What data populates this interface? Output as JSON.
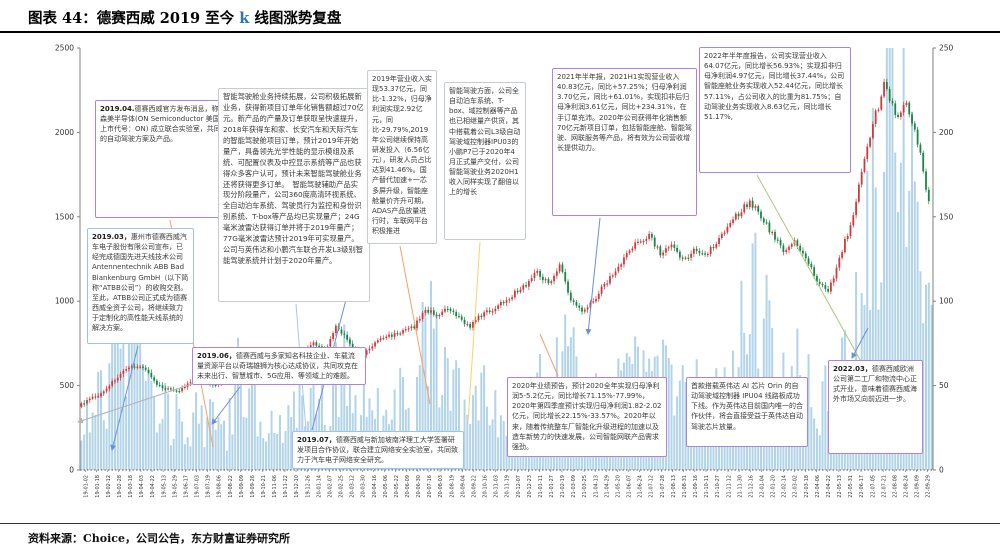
{
  "title": {
    "pre": "图表 44：德赛西威 2019 至今 ",
    "k": "k",
    "post": " 线图涨势复盘"
  },
  "footer": {
    "source": "资料来源：Choice，公司公告，东方财富证券研究所"
  },
  "annotations": [
    {
      "lead": "2019.04.",
      "body": "德赛西威官方发布消息，称将联合安森美半导体(ON Semiconductor 美国纳斯达克上市代号：ON) 成立联合实验室，共同研发先进的自动驾驶方案及产品。"
    },
    {
      "lead": "2019.03，",
      "body": "惠州市德赛西威汽车电子股份有限公司宣布，已经完成德国先进天线技术公司Antennentechnik ABB Bad Blankenburg GmbH（以下简称“ATBB公司”）的收购交割。至此，ATBB公司正式成为德赛西威全资子公司，将继续致力于定制化的高性能天线系统的解决方案。"
    },
    {
      "lead": "",
      "body": "智能驾驶舱业务持续拓展，公司积极拓展新业务，获得新项目订单年化销售额超过70亿元。新产品的产量及订单获取呈快速提升，2018年获得车和家、长安汽车和天际汽车的智能驾驶舱项目订单，预计2019年开始量产，具备领先光学性能的显示模组及系统、可配置仪表及中控显示系统等产品也获得众多客户认可，预计未来智能驾驶舱业务还将获得更多订单。　智能驾驶辅助产品实现分阶段量产，公司360度高清环视系统、全自动泊车系统、驾驶员行为监控和身份识别系统、T-box等产品均已实现量产；24G毫米波雷达获得订单并将于2019年量产；77G毫米波雷达预计2019年可实现量产。公司与英伟达和小鹏汽车联合开发L3级别智能驾驶系统并计划于2020年量产。"
    },
    {
      "lead": "2019.06，",
      "body": "德赛西威与多家知名科技企业、车载流量资源平台以奇瑞雄狮为核心达成协议，共同攻克在未来出行、智慧城市、5G应用、等领域上的难题。"
    },
    {
      "lead": "2019.07，",
      "body": "德赛西威与新加坡南洋理工大学签署研发项目合作协议，联合建立网络安全实验室，共同致力于汽车电子网络安全研究。"
    },
    {
      "lead": "",
      "body": "2019年营业收入实现53.37亿元，同比-1.32%，归母净利润实现2.92亿元，同比-29.79%,2019年公司继续保持高研发投入（6.56亿元），研发人员占比达到41.46%。国产替代加速+一芯多屏升级，智能座舱量价齐升可期，ADAS产品放量进行时，车联网平台积极推进"
    },
    {
      "lead": "",
      "body": "智能驾驶方面，公司全自动泊车系统、T-box、域控制器等产品也已相继量产供货，其中搭载着公司L3级自动驾驶域控制器IPU03的小鹏P7已于2020年4月正式量产交付，公司智能驾驶业务2020H1收入同样实现了翻倍以上的增长"
    },
    {
      "lead": "",
      "body": "2021年半年报，2021H1实现营业收入40.83亿元，同比+57.25%；归母净利润3.70亿元，同比+61.01%，实现扣非后归母净利润3.61亿元，同比+234.31%，在手订单充沛。2020年公司获得年化销售额70亿元新项目订单，包括智能座舱、智能驾驶、网联服务等产品，将有效为公司营收增长提供动力。"
    },
    {
      "lead": "",
      "body": "2022年半年度报告，公司实现营业收入64.07亿元，同比增长56.93%；实现扣非归母净利润4.97亿元，同比增长37.44%，公司智能座舱业务实现收入52.44亿元，同比增长57.11%，占公司收入的比重为81.75%；自动驾驶业务实现收入8.63亿元，同比增长51.17%,"
    },
    {
      "lead": "",
      "body": "2020年业绩预告，预计2020全年实现归母净利润5-5.2亿元，同比增长71.15%-77.99%，2020年第四季度预计实现归母净利润1.82-2.02亿元，同比增长22.15%-33.57%。2020年以来，随着传统整车厂智能化升级进程的加速以及造车新势力的快速发展，公司智能网联产品需求强劲。"
    },
    {
      "lead": "",
      "body": "首款搭载英伟达 AI 芯片 Orin 的自动驾驶域控制器 IPU04 线路板成功下线。作为英伟达目前国内唯一的合作伙伴，将会直接受益于英伟达自动驾驶芯片放量。"
    },
    {
      "lead": "2022.03，",
      "body": "德赛西威欧洲公司第二工厂和物流中心正式开业，意味着德赛西威海外市场又向前迈进一步。"
    }
  ],
  "chart_data": {
    "type": "candlestick+volume",
    "x": [
      "19-01-02",
      "19-01-18",
      "19-02-12",
      "19-02-28",
      "19-03-18",
      "19-04-03",
      "19-04-22",
      "19-05-13",
      "19-05-29",
      "19-06-17",
      "19-07-03",
      "19-07-19",
      "19-08-06",
      "19-08-22",
      "19-09-09",
      "19-09-26",
      "19-10-21",
      "19-11-06",
      "19-11-22",
      "19-12-10",
      "19-12-26",
      "20-01-14",
      "20-02-07",
      "20-02-25",
      "20-03-12",
      "20-03-30",
      "20-04-16",
      "20-05-06",
      "20-05-22",
      "20-06-09",
      "20-06-30",
      "20-07-16",
      "20-08-03",
      "20-08-19",
      "20-09-04",
      "20-09-22",
      "20-10-16",
      "20-11-03",
      "20-11-19",
      "20-12-07",
      "20-12-23",
      "21-01-11",
      "21-01-27",
      "21-02-19",
      "21-03-09",
      "21-03-25",
      "21-04-13",
      "21-04-29",
      "21-05-20",
      "21-06-07",
      "21-06-24",
      "21-07-12",
      "21-07-28",
      "21-08-13",
      "21-08-31",
      "21-09-16",
      "21-10-11",
      "21-10-27",
      "21-11-12",
      "21-11-30",
      "21-12-16",
      "22-01-04",
      "22-01-20",
      "22-02-14",
      "22-03-02",
      "22-03-18",
      "22-04-06",
      "22-04-22",
      "22-05-13",
      "22-05-31",
      "22-06-17",
      "22-07-05",
      "22-07-21",
      "22-08-08",
      "22-08-24",
      "22-09-09",
      "22-09-29"
    ],
    "series": [
      {
        "name": "price",
        "axis": "right",
        "values": [
          38,
          42,
          45,
          52,
          58,
          62,
          60,
          50,
          48,
          47,
          52,
          55,
          50,
          53,
          60,
          58,
          57,
          60,
          58,
          62,
          68,
          75,
          70,
          85,
          78,
          65,
          72,
          78,
          80,
          82,
          85,
          95,
          92,
          95,
          90,
          85,
          92,
          95,
          100,
          105,
          110,
          118,
          110,
          122,
          100,
          95,
          100,
          110,
          118,
          128,
          135,
          140,
          128,
          132,
          125,
          130,
          128,
          135,
          145,
          152,
          160,
          150,
          140,
          130,
          135,
          125,
          112,
          105,
          125,
          145,
          175,
          205,
          228,
          210,
          218,
          195,
          158
        ]
      },
      {
        "name": "volume",
        "axis": "left",
        "values": [
          300,
          350,
          400,
          700,
          850,
          600,
          500,
          350,
          300,
          280,
          320,
          300,
          260,
          240,
          500,
          400,
          300,
          280,
          260,
          300,
          350,
          420,
          380,
          600,
          500,
          380,
          350,
          400,
          380,
          420,
          450,
          800,
          600,
          500,
          420,
          380,
          450,
          400,
          380,
          420,
          450,
          500,
          450,
          600,
          550,
          400,
          380,
          420,
          500,
          650,
          700,
          600,
          500,
          480,
          420,
          450,
          430,
          500,
          600,
          900,
          1300,
          800,
          600,
          500,
          550,
          480,
          420,
          380,
          500,
          700,
          1100,
          1600,
          2200,
          1800,
          1500,
          1300,
          900
        ]
      }
    ],
    "left_axis": {
      "range": [
        0,
        2500
      ],
      "ticks": [
        0,
        500,
        1000,
        1500,
        2000,
        2500
      ]
    },
    "right_axis": {
      "range": [
        0,
        250
      ],
      "ticks": [
        0,
        50,
        100,
        150,
        200,
        250
      ]
    },
    "legend": "none",
    "grid": false,
    "colors": {
      "up": "#d23a3a",
      "down": "#1b8446",
      "volume": "#b3d4e8",
      "title_k_accent": "#2e75b6"
    }
  }
}
